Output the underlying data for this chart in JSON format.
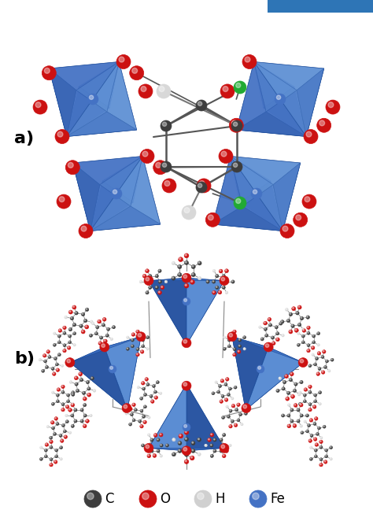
{
  "background_color": "#ffffff",
  "panel_a_label": "a)",
  "panel_b_label": "b)",
  "label_fontsize": 16,
  "legend_fontsize": 12,
  "header_color": "#2e75b6",
  "legend_labels": [
    "C",
    "O",
    "H",
    "Fe"
  ],
  "legend_colors": [
    "#3d3d3d",
    "#cc1111",
    "#d0d0d0",
    "#4472c4"
  ],
  "atom_C_color": "#3d3d3d",
  "atom_O_color": "#cc1111",
  "atom_H_color": "#d8d8d8",
  "atom_Fe_color": "#4472c4",
  "atom_green_color": "#22aa33",
  "octahedron_color": "#4472c4",
  "octahedron_edge_color": "#1a5099",
  "tetrahedron_color": "#3a6ec4",
  "tetrahedron_edge_color": "#1a4a99"
}
